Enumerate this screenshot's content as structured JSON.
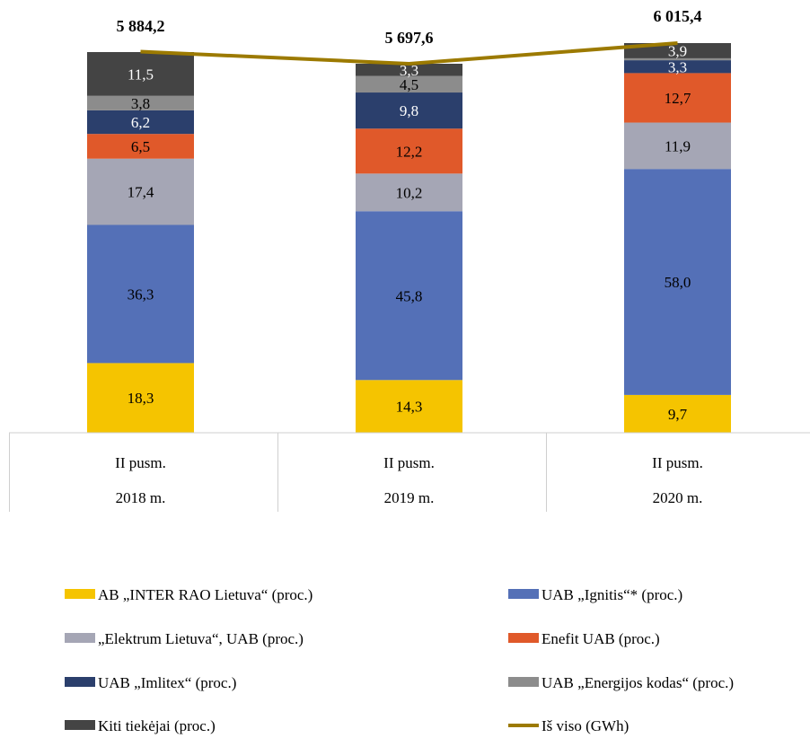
{
  "chart_data": {
    "type": "bar",
    "stacked": true,
    "categories": [
      [
        "II pusm.",
        "2018 m."
      ],
      [
        "II pusm.",
        "2019 m."
      ],
      [
        "II pusm.",
        "2020 m."
      ]
    ],
    "series": [
      {
        "name": "AB „INTER RAO Lietuva“ (proc.)",
        "color": "#f5c400",
        "label_color": "#000000",
        "values": [
          18.3,
          14.3,
          9.7
        ],
        "labels": [
          "18,3",
          "14,3",
          "9,7"
        ]
      },
      {
        "name": "UAB  „Ignitis“* (proc.)",
        "color": "#5470b7",
        "label_color": "#000000",
        "values": [
          36.3,
          45.8,
          58.0
        ],
        "labels": [
          "36,3",
          "45,8",
          "58,0"
        ]
      },
      {
        "name": "„Elektrum Lietuva“, UAB  (proc.)",
        "color": "#a5a6b5",
        "label_color": "#000000",
        "values": [
          17.4,
          10.2,
          11.9
        ],
        "labels": [
          "17,4",
          "10,2",
          "11,9"
        ]
      },
      {
        "name": "Enefit UAB (proc.)",
        "color": "#e0592a",
        "label_color": "#000000",
        "values": [
          6.5,
          12.2,
          12.7
        ],
        "labels": [
          "6,5",
          "12,2",
          "12,7"
        ]
      },
      {
        "name": "UAB  „Imlitex“  (proc.)",
        "color": "#2b3f6c",
        "label_color": "#ffffff",
        "values": [
          6.2,
          9.8,
          3.3
        ],
        "labels": [
          "6,2",
          "9,8",
          "3,3"
        ]
      },
      {
        "name": "UAB  „Energijos  kodas“ (proc.)",
        "color": "#8c8c8c",
        "label_color": "#000000",
        "values": [
          3.8,
          4.5,
          0.5
        ],
        "labels": [
          "3,8",
          "4,5",
          ""
        ]
      },
      {
        "name": "Kiti tiekėjai (proc.)",
        "color": "#444444",
        "label_color": "#ffffff",
        "values": [
          11.5,
          3.3,
          3.9
        ],
        "labels": [
          "11,5",
          "3,3",
          "3,9"
        ]
      }
    ],
    "line": {
      "name": "Iš viso (GWh)",
      "color": "#9c7a00",
      "values": [
        5884.2,
        5697.6,
        6015.4
      ],
      "labels": [
        "5 884,2",
        "5 697,6",
        "6 015,4"
      ]
    },
    "legend_position": "bottom",
    "grid": false
  }
}
